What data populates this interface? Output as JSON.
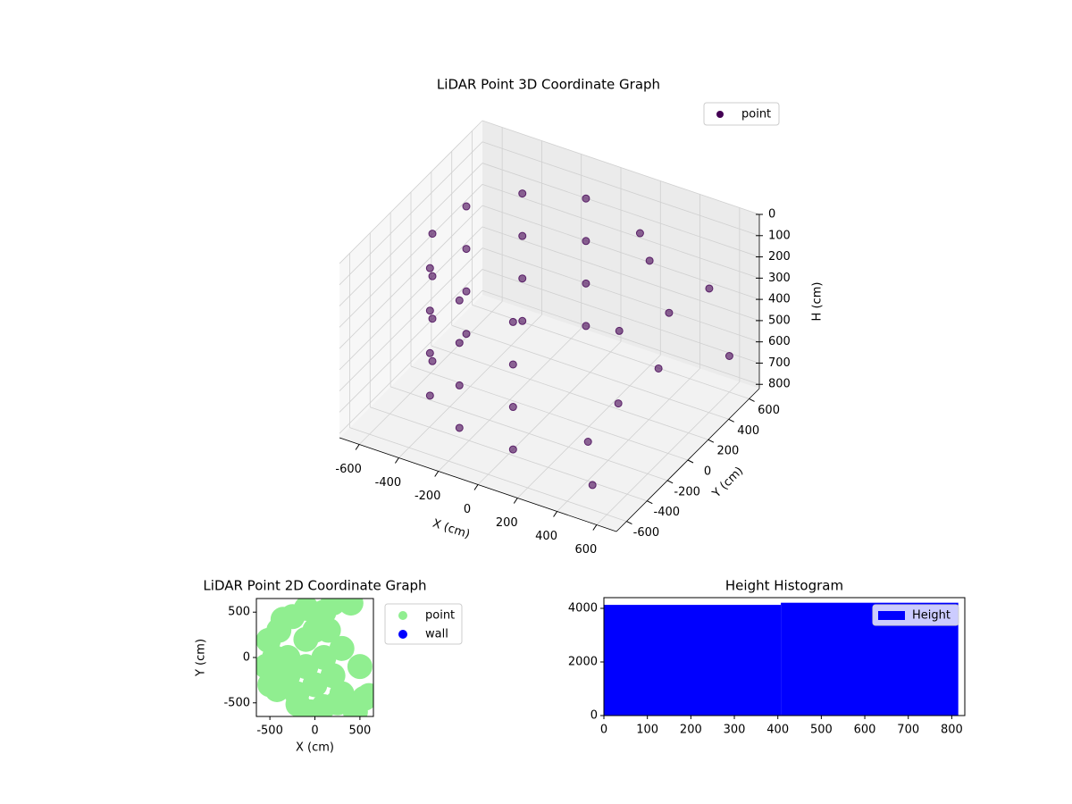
{
  "chart_data": [
    {
      "type": "scatter3d",
      "title": "LiDAR Point 3D Coordinate Graph",
      "xlabel": "X (cm)",
      "ylabel": "Y (cm)",
      "zlabel": "H (cm)",
      "xlim": [
        -700,
        700
      ],
      "ylim": [
        -700,
        700
      ],
      "zlim": [
        820,
        0
      ],
      "xticks": [
        -600,
        -400,
        -200,
        0,
        200,
        400,
        600
      ],
      "yticks": [
        -600,
        -400,
        -200,
        0,
        200,
        400,
        600
      ],
      "zticks": [
        0,
        100,
        200,
        300,
        400,
        500,
        600,
        700,
        800
      ],
      "legend": "upper right",
      "series": [
        {
          "name": "point",
          "color": "#440154",
          "x": [
            -95,
            -354,
            -517,
            -542,
            -421,
            -188,
            96,
            -95,
            -354,
            -517,
            -542,
            -421,
            -188,
            96,
            -95,
            -354,
            -517,
            -542,
            -421,
            -188,
            96,
            -95,
            -354,
            -517,
            -542,
            -421,
            -188,
            96,
            300,
            450,
            500,
            400,
            550,
            200,
            350,
            600,
            250,
            450
          ],
          "y": [
            542,
            421,
            188,
            -96,
            -354,
            -517,
            -542,
            542,
            421,
            188,
            -96,
            -354,
            -517,
            -542,
            542,
            421,
            188,
            -96,
            -354,
            -517,
            -542,
            542,
            421,
            188,
            -96,
            -354,
            -517,
            -542,
            400,
            300,
            100,
            -100,
            500,
            500,
            -300,
            600,
            200,
            -450
          ],
          "z": [
            100,
            100,
            100,
            100,
            100,
            100,
            100,
            300,
            300,
            300,
            300,
            300,
            300,
            300,
            500,
            500,
            500,
            500,
            500,
            500,
            500,
            700,
            700,
            700,
            700,
            700,
            700,
            700,
            200,
            350,
            500,
            600,
            300,
            150,
            700,
            650,
            450,
            800
          ]
        }
      ]
    },
    {
      "type": "scatter",
      "title": "LiDAR Point 2D Coordinate Graph",
      "xlabel": "X (cm)",
      "ylabel": "Y (cm)",
      "xlim": [
        -650,
        650
      ],
      "ylim": [
        -650,
        650
      ],
      "xticks": [
        -500,
        0,
        500
      ],
      "yticks": [
        -500,
        0,
        500
      ],
      "legend": "outside right",
      "series": [
        {
          "name": "point",
          "color": "#90ee90",
          "x": [
            -95,
            -354,
            -517,
            -542,
            -421,
            -188,
            96,
            -300,
            -100,
            0,
            -200,
            100,
            200,
            -400,
            300,
            500,
            550,
            600,
            400,
            200,
            100,
            -300,
            -100,
            0,
            300,
            -250,
            -450,
            -500,
            150,
            450,
            250,
            -50
          ],
          "y": [
            542,
            421,
            188,
            -96,
            -354,
            -517,
            -542,
            0,
            200,
            -300,
            -400,
            0,
            -200,
            300,
            100,
            -100,
            -450,
            -420,
            600,
            600,
            500,
            -200,
            -100,
            300,
            -400,
            450,
            0,
            -300,
            300,
            -600,
            -500,
            -600
          ]
        },
        {
          "name": "wall",
          "color": "#0000ff",
          "x": [],
          "y": []
        }
      ]
    },
    {
      "type": "histogram",
      "title": "Height Histogram",
      "bins": [
        0,
        407,
        815
      ],
      "values": [
        4130,
        4210
      ],
      "color": "#0000ff",
      "series_name": "Height",
      "legend": "upper right",
      "xlim": [
        0,
        830
      ],
      "ylim": [
        0,
        4400
      ],
      "xticks": [
        0,
        100,
        200,
        300,
        400,
        500,
        600,
        700,
        800
      ],
      "yticks": [
        0,
        2000,
        4000
      ]
    }
  ]
}
